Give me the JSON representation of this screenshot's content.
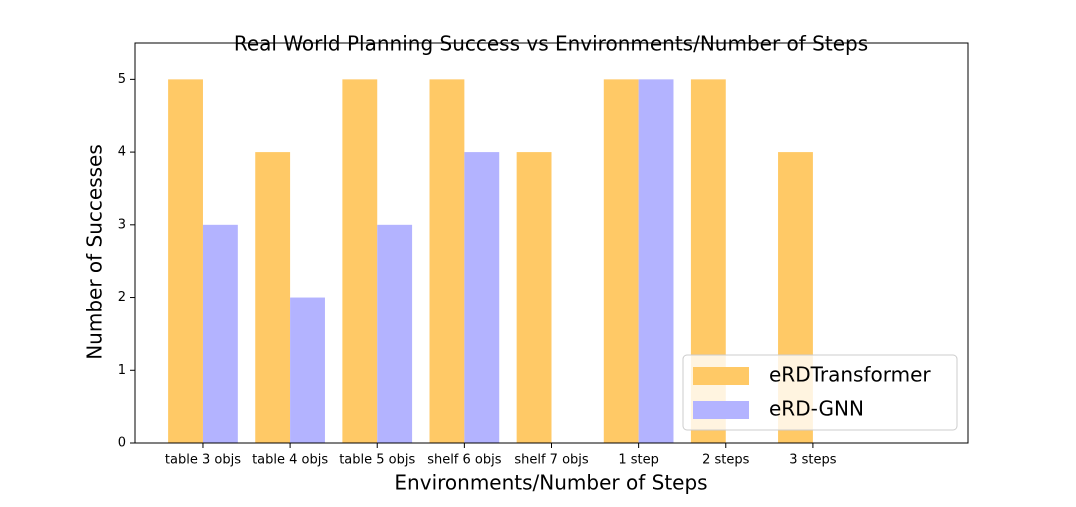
{
  "chart_data": {
    "type": "bar",
    "title": "Real World Planning Success vs Environments/Number of Steps",
    "x_label": "Environments/Number of Steps",
    "y_label": "Number of Successes",
    "categories": [
      "table 3 objs",
      "table 4 objs",
      "table 5 objs",
      "shelf 6 objs",
      "shelf 7 objs",
      "1 step",
      "2 steps",
      "3 steps"
    ],
    "series": [
      {
        "name": "eRDTransformer",
        "color": "#ffc966",
        "values": [
          5,
          4,
          5,
          5,
          4,
          5,
          5,
          4
        ]
      },
      {
        "name": "eRD-GNN",
        "color": "#b3b3ff",
        "values": [
          3,
          2,
          3,
          4,
          0,
          5,
          0,
          0
        ]
      }
    ],
    "ylim": [
      0,
      5.5
    ],
    "yticks": [
      0,
      1,
      2,
      3,
      4,
      5
    ],
    "legend": "lower right"
  }
}
